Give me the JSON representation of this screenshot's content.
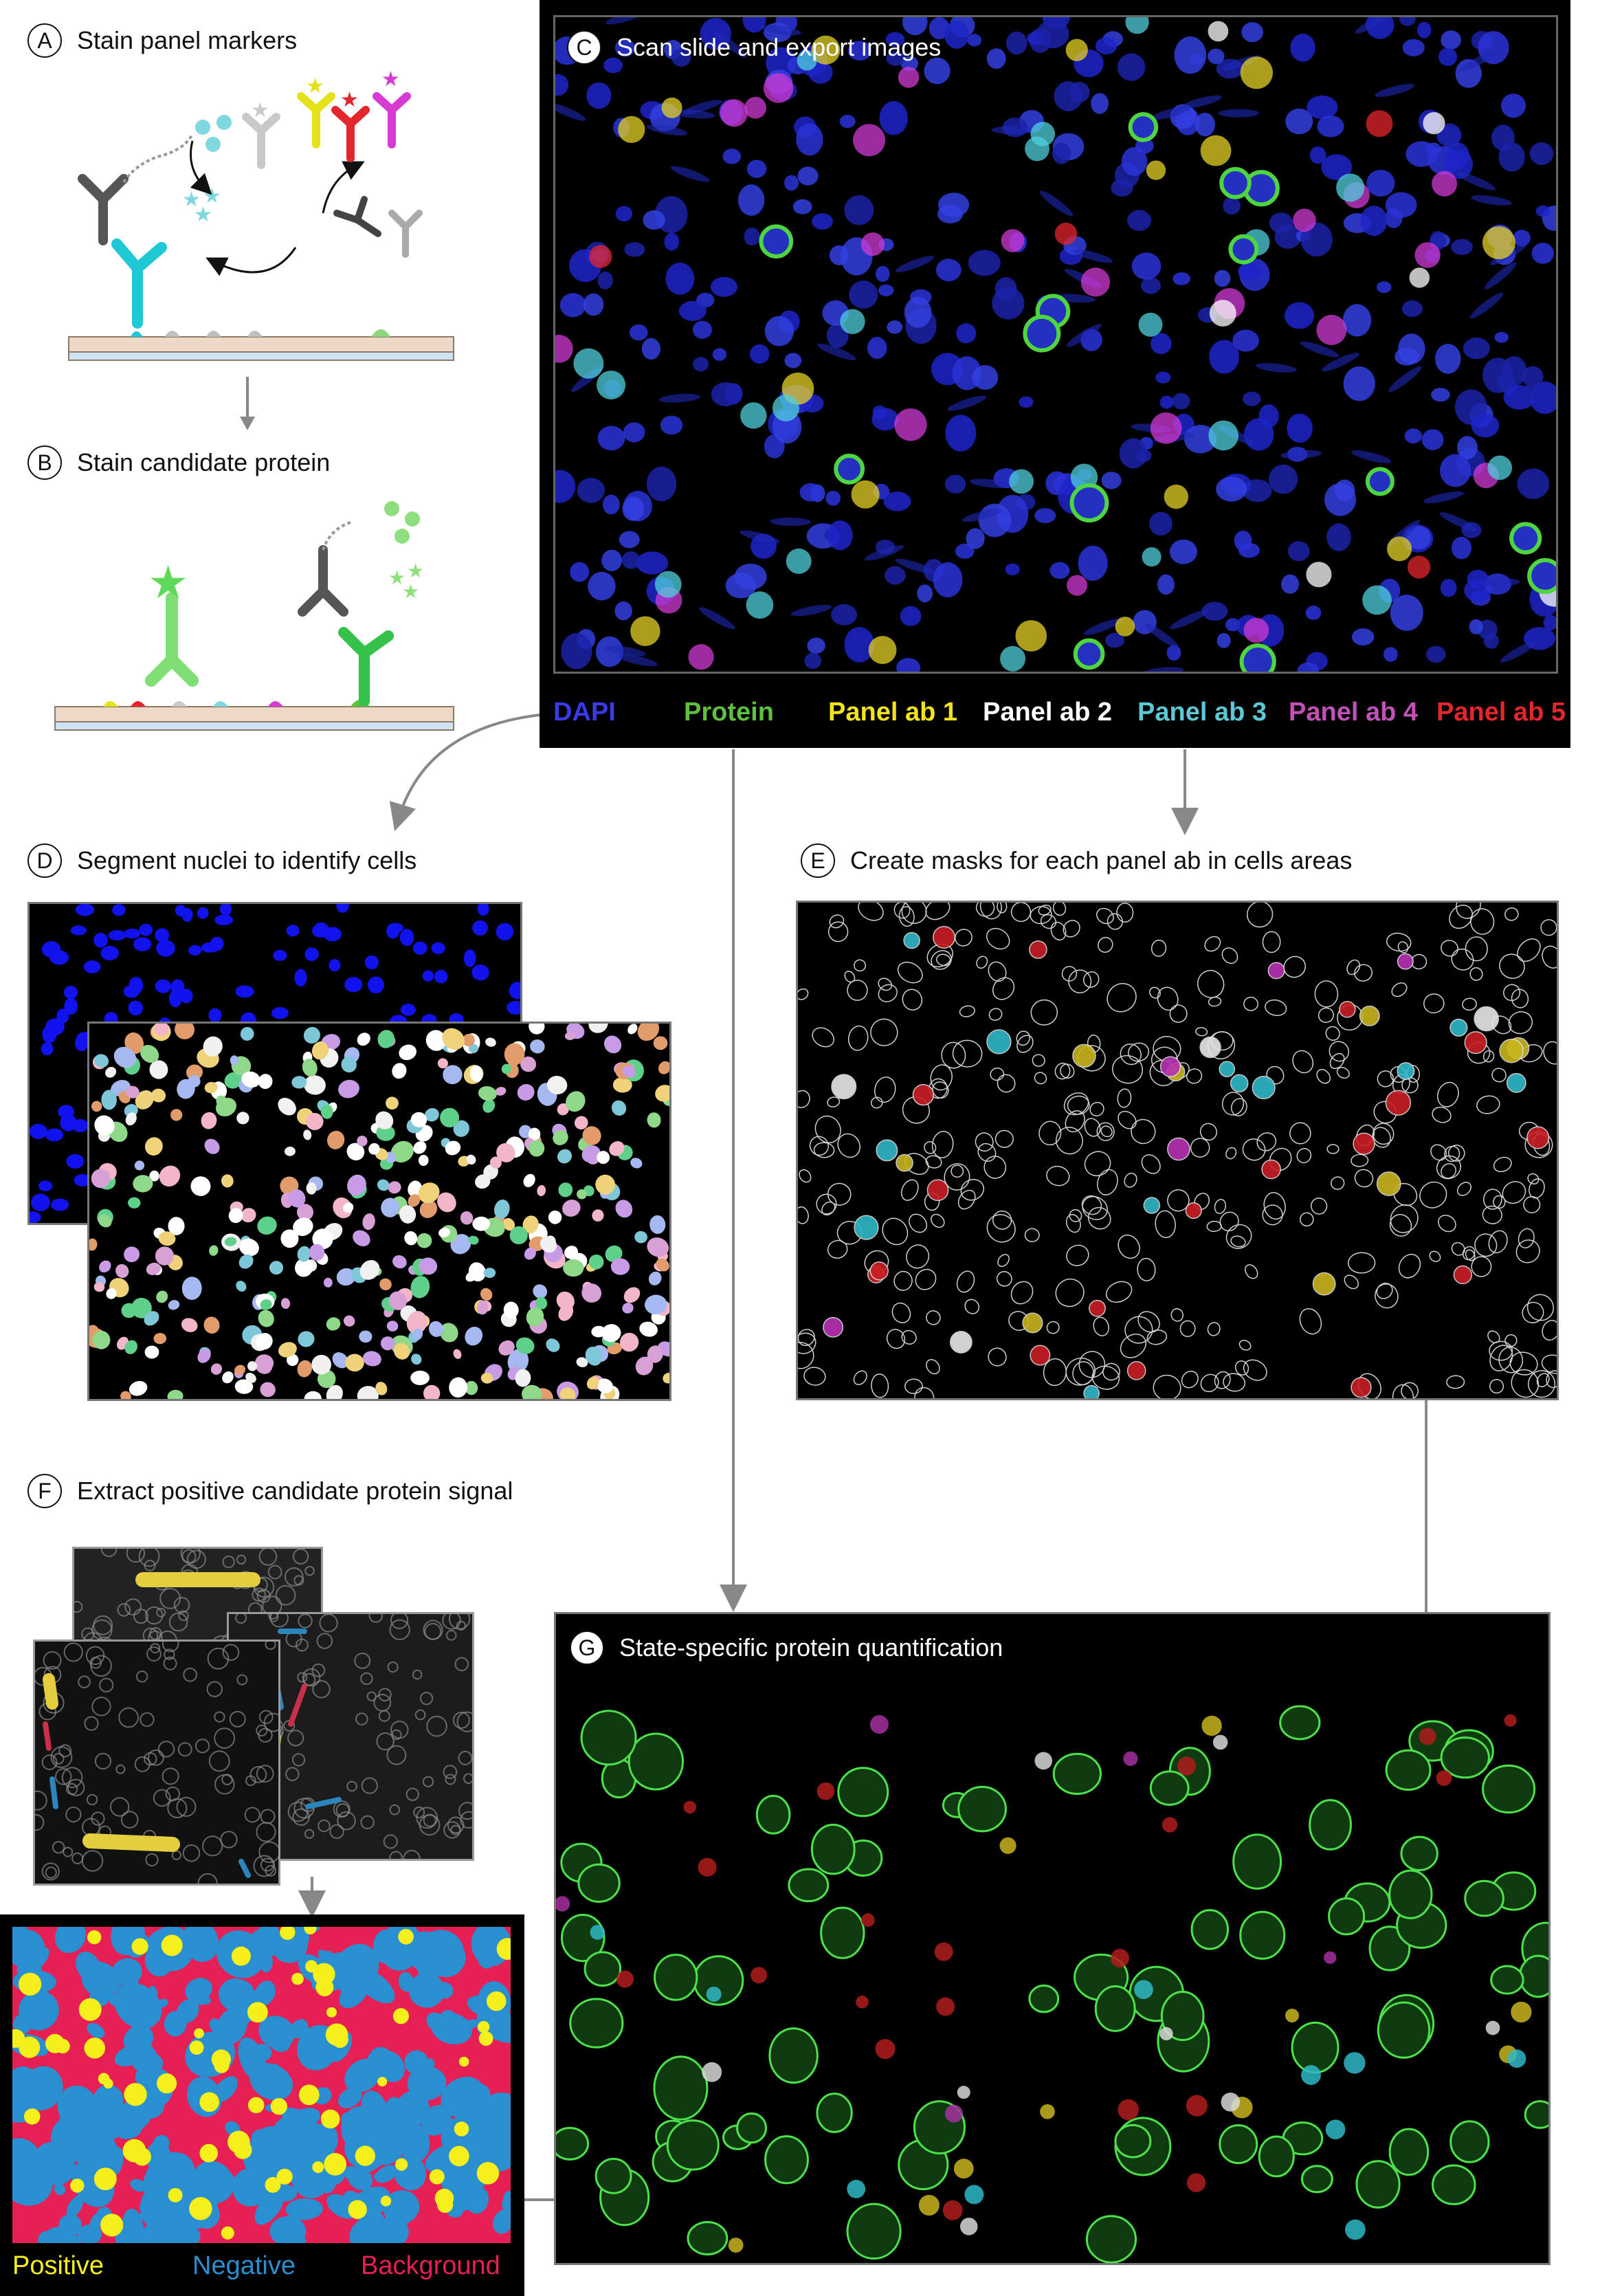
{
  "steps": {
    "A": {
      "letter": "A",
      "title": "Stain panel markers"
    },
    "B": {
      "letter": "B",
      "title": "Stain candidate protein"
    },
    "C": {
      "letter": "C",
      "title": "Scan slide and export images"
    },
    "D": {
      "letter": "D",
      "title": "Segment nuclei to identify cells"
    },
    "E": {
      "letter": "E",
      "title": "Create masks for each panel ab in cells areas"
    },
    "F": {
      "letter": "F",
      "title": "Extract positive candidate protein signal"
    },
    "G": {
      "letter": "G",
      "title": "State-specific protein quantification"
    }
  },
  "channels": [
    {
      "label": "DAPI",
      "color": "#3a3ae6"
    },
    {
      "label": "Protein",
      "color": "#5fbf3f"
    },
    {
      "label": "Panel ab 1",
      "color": "#f2e21a"
    },
    {
      "label": "Panel ab 2",
      "color": "#ffffff"
    },
    {
      "label": "Panel ab 3",
      "color": "#5cc8d6"
    },
    {
      "label": "Panel ab 4",
      "color": "#c251b7"
    },
    {
      "label": "Panel ab 5",
      "color": "#e3262b"
    }
  ],
  "classes": [
    {
      "label": "Positive",
      "color": "#f5ef1c"
    },
    {
      "label": "Negative",
      "color": "#2a8fd1"
    },
    {
      "label": "Background",
      "color": "#e61f55"
    }
  ]
}
